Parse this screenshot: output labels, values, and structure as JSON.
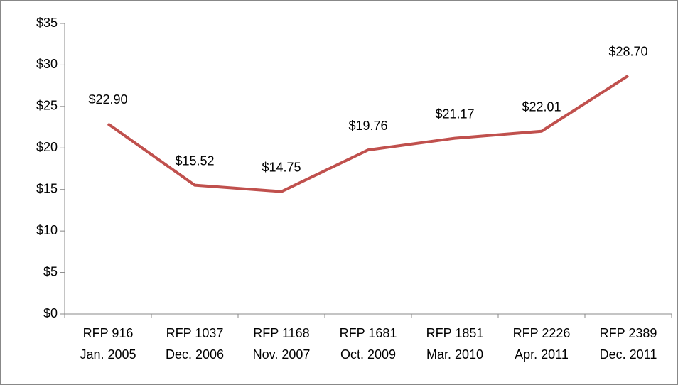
{
  "chart_data": {
    "type": "line",
    "categories": [
      [
        "RFP 916",
        "Jan. 2005"
      ],
      [
        "RFP 1037",
        "Dec. 2006"
      ],
      [
        "RFP 1168",
        "Nov. 2007"
      ],
      [
        "RFP 1681",
        "Oct. 2009"
      ],
      [
        "RFP 1851",
        "Mar. 2010"
      ],
      [
        "RFP 2226",
        "Apr. 2011"
      ],
      [
        "RFP 2389",
        "Dec. 2011"
      ]
    ],
    "values": [
      22.9,
      15.52,
      14.75,
      19.76,
      21.17,
      22.01,
      28.7
    ],
    "value_labels": [
      "$22.90",
      "$15.52",
      "$14.75",
      "$19.76",
      "$21.17",
      "$22.01",
      "$28.70"
    ],
    "color": "#c0504d",
    "ylim": [
      0,
      35
    ],
    "yticks": [
      {
        "value": 0,
        "label": "$0"
      },
      {
        "value": 5,
        "label": "$5"
      },
      {
        "value": 10,
        "label": "$10"
      },
      {
        "value": 15,
        "label": "$15"
      },
      {
        "value": 20,
        "label": "$20"
      },
      {
        "value": 25,
        "label": "$25"
      },
      {
        "value": 30,
        "label": "$30"
      },
      {
        "value": 35,
        "label": "$35"
      }
    ],
    "grid": false
  }
}
